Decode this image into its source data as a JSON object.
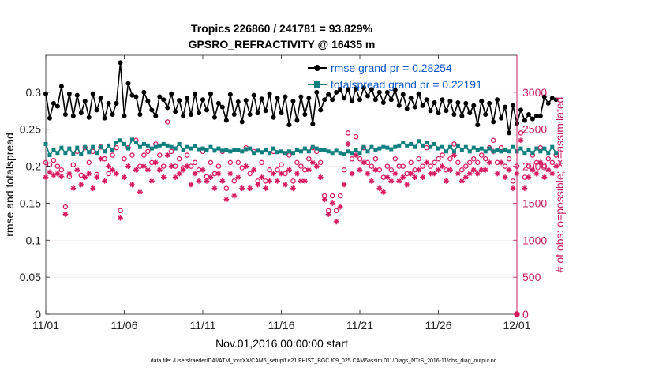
{
  "chart_data": {
    "type": "line",
    "title_line1": "Tropics 226860 / 241781 = 93.829%",
    "title_line2": "GPSRO_REFRACTIVITY @ 16435 m",
    "xlabel": "Nov.01,2016 00:00:00 start",
    "ylabel_left": "rmse and totalspread",
    "ylabel_right": "# of obs: o=possible; ∗=assimilated",
    "footnote": "data file: /Users/raeder/DAI/ATM_forcXX/CAM6_setup/f.e21.FHIST_BGC.f09_025.CAM6assim.011/Diags_NTrS_2016-11/obs_diag_output.nc",
    "x_range": [
      0,
      30
    ],
    "x_tick_values": [
      0,
      5,
      10,
      15,
      20,
      25,
      30
    ],
    "x_tick_labels": [
      "11/01",
      "11/06",
      "11/11",
      "11/16",
      "11/21",
      "11/26",
      "12/01"
    ],
    "ylim_left": [
      0,
      0.35
    ],
    "y_left_tick_values": [
      0,
      0.05,
      0.1,
      0.15,
      0.2,
      0.25,
      0.3
    ],
    "y_left_tick_labels": [
      "0",
      "0.05",
      "0.1",
      "0.15",
      "0.2",
      "0.25",
      "0.3"
    ],
    "ylim_right": [
      0,
      3500
    ],
    "y_right_tick_values": [
      0,
      500,
      1000,
      1500,
      2000,
      2500,
      3000
    ],
    "y_right_tick_labels": [
      "0",
      "500",
      "1000",
      "1500",
      "2000",
      "2500",
      "3000"
    ],
    "series": [
      {
        "name": "rmse grand pr = 0.28254",
        "axis": "left",
        "color": "#000000",
        "marker": "filled-star",
        "values": [
          0.298,
          0.265,
          0.285,
          0.281,
          0.308,
          0.27,
          0.298,
          0.268,
          0.296,
          0.272,
          0.288,
          0.266,
          0.298,
          0.276,
          0.292,
          0.265,
          0.285,
          0.27,
          0.285,
          0.34,
          0.268,
          0.312,
          0.296,
          0.294,
          0.27,
          0.3,
          0.288,
          0.276,
          0.268,
          0.294,
          0.29,
          0.279,
          0.298,
          0.274,
          0.289,
          0.268,
          0.292,
          0.27,
          0.298,
          0.272,
          0.29,
          0.276,
          0.298,
          0.266,
          0.285,
          0.28,
          0.262,
          0.297,
          0.27,
          0.287,
          0.26,
          0.289,
          0.27,
          0.296,
          0.272,
          0.291,
          0.275,
          0.298,
          0.266,
          0.292,
          0.272,
          0.294,
          0.256,
          0.288,
          0.262,
          0.294,
          0.27,
          0.292,
          0.257,
          0.3,
          0.276,
          0.29,
          0.297,
          0.29,
          0.3,
          0.304,
          0.292,
          0.304,
          0.288,
          0.305,
          0.29,
          0.306,
          0.295,
          0.304,
          0.29,
          0.3,
          0.286,
          0.3,
          0.29,
          0.303,
          0.282,
          0.297,
          0.278,
          0.292,
          0.28,
          0.298,
          0.282,
          0.29,
          0.275,
          0.286,
          0.272,
          0.29,
          0.275,
          0.288,
          0.27,
          0.286,
          0.268,
          0.285,
          0.272,
          0.282,
          0.256,
          0.288,
          0.27,
          0.285,
          0.26,
          0.29,
          0.265,
          0.28,
          0.245,
          0.282,
          0.258,
          0.276,
          0.262,
          0.27,
          0.264,
          0.268,
          0.268,
          0.294,
          0.285,
          0.292,
          0.29
        ],
        "x_start": 0,
        "x_step": 0.25
      },
      {
        "name": "totalspread grand pr = 0.22191",
        "axis": "left",
        "color": "#0f7f7f",
        "marker": "filled-square",
        "values": [
          0.23,
          0.215,
          0.222,
          0.218,
          0.225,
          0.218,
          0.224,
          0.217,
          0.225,
          0.216,
          0.226,
          0.219,
          0.226,
          0.218,
          0.226,
          0.22,
          0.228,
          0.222,
          0.232,
          0.235,
          0.23,
          0.224,
          0.236,
          0.232,
          0.226,
          0.23,
          0.228,
          0.224,
          0.226,
          0.228,
          0.23,
          0.228,
          0.226,
          0.224,
          0.23,
          0.222,
          0.226,
          0.224,
          0.227,
          0.223,
          0.224,
          0.222,
          0.226,
          0.221,
          0.224,
          0.221,
          0.222,
          0.22,
          0.222,
          0.222,
          0.22,
          0.223,
          0.224,
          0.218,
          0.221,
          0.219,
          0.222,
          0.218,
          0.224,
          0.219,
          0.22,
          0.218,
          0.22,
          0.218,
          0.222,
          0.22,
          0.224,
          0.22,
          0.226,
          0.224,
          0.222,
          0.222,
          0.22,
          0.218,
          0.221,
          0.218,
          0.216,
          0.22,
          0.218,
          0.222,
          0.218,
          0.226,
          0.22,
          0.226,
          0.222,
          0.224,
          0.226,
          0.225,
          0.223,
          0.226,
          0.228,
          0.232,
          0.228,
          0.23,
          0.226,
          0.234,
          0.228,
          0.232,
          0.226,
          0.23,
          0.224,
          0.226,
          0.22,
          0.226,
          0.22,
          0.228,
          0.222,
          0.226,
          0.22,
          0.225,
          0.222,
          0.224,
          0.22,
          0.224,
          0.22,
          0.222,
          0.22,
          0.222,
          0.22,
          0.226,
          0.22,
          0.224,
          0.218,
          0.222,
          0.218,
          0.224,
          0.22,
          0.224,
          0.218,
          0.226,
          0.218
        ],
        "x_start": 0,
        "x_step": 0.25
      },
      {
        "name": "obs possible",
        "axis": "right",
        "color": "#d81a60",
        "marker": "open-circle",
        "values": [
          2050,
          2020,
          2080,
          2000,
          1950,
          1450,
          1860,
          2020,
          2200,
          1880,
          2250,
          2050,
          2200,
          1890,
          2260,
          2100,
          1900,
          2150,
          2250,
          1400,
          2100,
          2250,
          2150,
          2350,
          2000,
          2150,
          2200,
          2050,
          2300,
          2150,
          2000,
          2600,
          2200,
          2000,
          2100,
          1980,
          2150,
          2000,
          2050,
          1950,
          2200,
          1860,
          2050,
          1900,
          2000,
          2200,
          1700,
          2050,
          1800,
          2050,
          1980,
          2250,
          1900,
          2200,
          1800,
          2050,
          1800,
          1950,
          2200,
          1950,
          2020,
          1900,
          2150,
          1800,
          2050,
          2000,
          1950,
          2100,
          2250,
          2200,
          2050,
          1600,
          1400,
          1600,
          1400,
          1600,
          1950,
          2450,
          2100,
          2400,
          2100,
          2250,
          2050,
          2000,
          2100,
          1950,
          1850,
          2000,
          1950,
          2100,
          2000,
          2000,
          1900,
          2050,
          1950,
          2100,
          2000,
          2250,
          2000,
          2050,
          2100,
          2150,
          1950,
          2100,
          2300,
          2050,
          1950,
          2000,
          2050,
          2100,
          2050,
          2150,
          2100,
          2250,
          2350,
          2050,
          2250,
          2000,
          2100,
          1800,
          2000,
          2450,
          1850,
          2000,
          2150,
          2050,
          2250,
          2000,
          2100,
          2050,
          2150
        ],
        "x_start": 0,
        "x_step": 0.25
      },
      {
        "name": "obs assimilated",
        "axis": "right",
        "color": "#d81a60",
        "marker": "asterisk",
        "values": [
          1850,
          1920,
          1880,
          1900,
          1860,
          1350,
          1900,
          1700,
          1950,
          1750,
          1850,
          1900,
          1700,
          1850,
          2100,
          1800,
          2000,
          1950,
          1900,
          1300,
          1850,
          2000,
          1750,
          1950,
          1650,
          2000,
          1950,
          1800,
          2050,
          1950,
          1850,
          2150,
          2000,
          1850,
          1900,
          1950,
          2000,
          1750,
          1900,
          1800,
          1950,
          1800,
          1850,
          1700,
          1900,
          1800,
          1550,
          1900,
          1600,
          1850,
          1700,
          2000,
          1700,
          1950,
          1750,
          1850,
          1700,
          1800,
          1900,
          1800,
          1900,
          1750,
          1950,
          1700,
          1900,
          1800,
          1800,
          1950,
          2050,
          2000,
          1850,
          1550,
          1350,
          1500,
          1250,
          1450,
          1750,
          2300,
          1900,
          2150,
          1950,
          2050,
          1900,
          1800,
          1950,
          1700,
          1650,
          1850,
          1800,
          1900,
          1800,
          1850,
          1750,
          1900,
          1850,
          1950,
          1850,
          2050,
          1900,
          1900,
          1950,
          2000,
          1800,
          1950,
          2150,
          1900,
          1800,
          1850,
          1900,
          1950,
          1900,
          1950,
          1950,
          2050,
          2200,
          1900,
          2050,
          1850,
          1950,
          1700,
          1900,
          2350,
          1700,
          1850,
          1950,
          1900,
          2050,
          1850,
          1950,
          1900,
          2000
        ],
        "x_start": 0,
        "x_step": 0.25
      }
    ],
    "legend_position": "top-right",
    "colors": {
      "axis_right": "#c81d60",
      "legend_text": "#0a59c9"
    }
  }
}
